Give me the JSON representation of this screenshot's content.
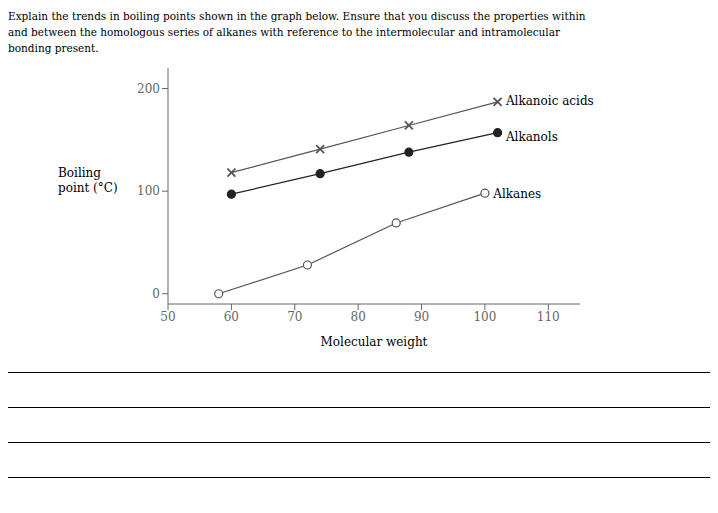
{
  "chart_data": {
    "type": "line",
    "title": [
      "Explain the trends in boiling points shown in the graph below. Ensure that you discuss the properties within",
      "and between the homologous series of alkanes with reference to the intermolecular and intramolecular",
      "bonding present."
    ],
    "xlabel": "Molecular weight",
    "ylabel": "Boiling\npoint (°C)",
    "xlim": [
      50,
      115
    ],
    "xticks": [
      50,
      60,
      70,
      80,
      90,
      100,
      110
    ],
    "ylim": [
      -10,
      220
    ],
    "yticks": [
      0,
      100,
      200
    ],
    "grid": false,
    "series": [
      {
        "name": "Alkanoic acids",
        "color": "#555555",
        "marker": "x",
        "x": [
          60,
          74,
          88,
          102
        ],
        "values": [
          118,
          141,
          164,
          187
        ]
      },
      {
        "name": "Alkanols",
        "color": "#222222",
        "marker": "circle",
        "x": [
          60,
          74,
          88,
          102
        ],
        "values": [
          97,
          117,
          138,
          157
        ]
      },
      {
        "name": "Alkanes",
        "color": "#555555",
        "marker": "open_circle",
        "x": [
          58,
          72,
          86,
          100
        ],
        "values": [
          0,
          28,
          69,
          98
        ]
      }
    ],
    "annotations": [
      {
        "text": "Alkanoic acids",
        "x": 103,
        "y": 188
      },
      {
        "text": "Alkanols",
        "x": 103,
        "y": 153
      },
      {
        "text": "Alkanes",
        "x": 101,
        "y": 97
      }
    ]
  }
}
